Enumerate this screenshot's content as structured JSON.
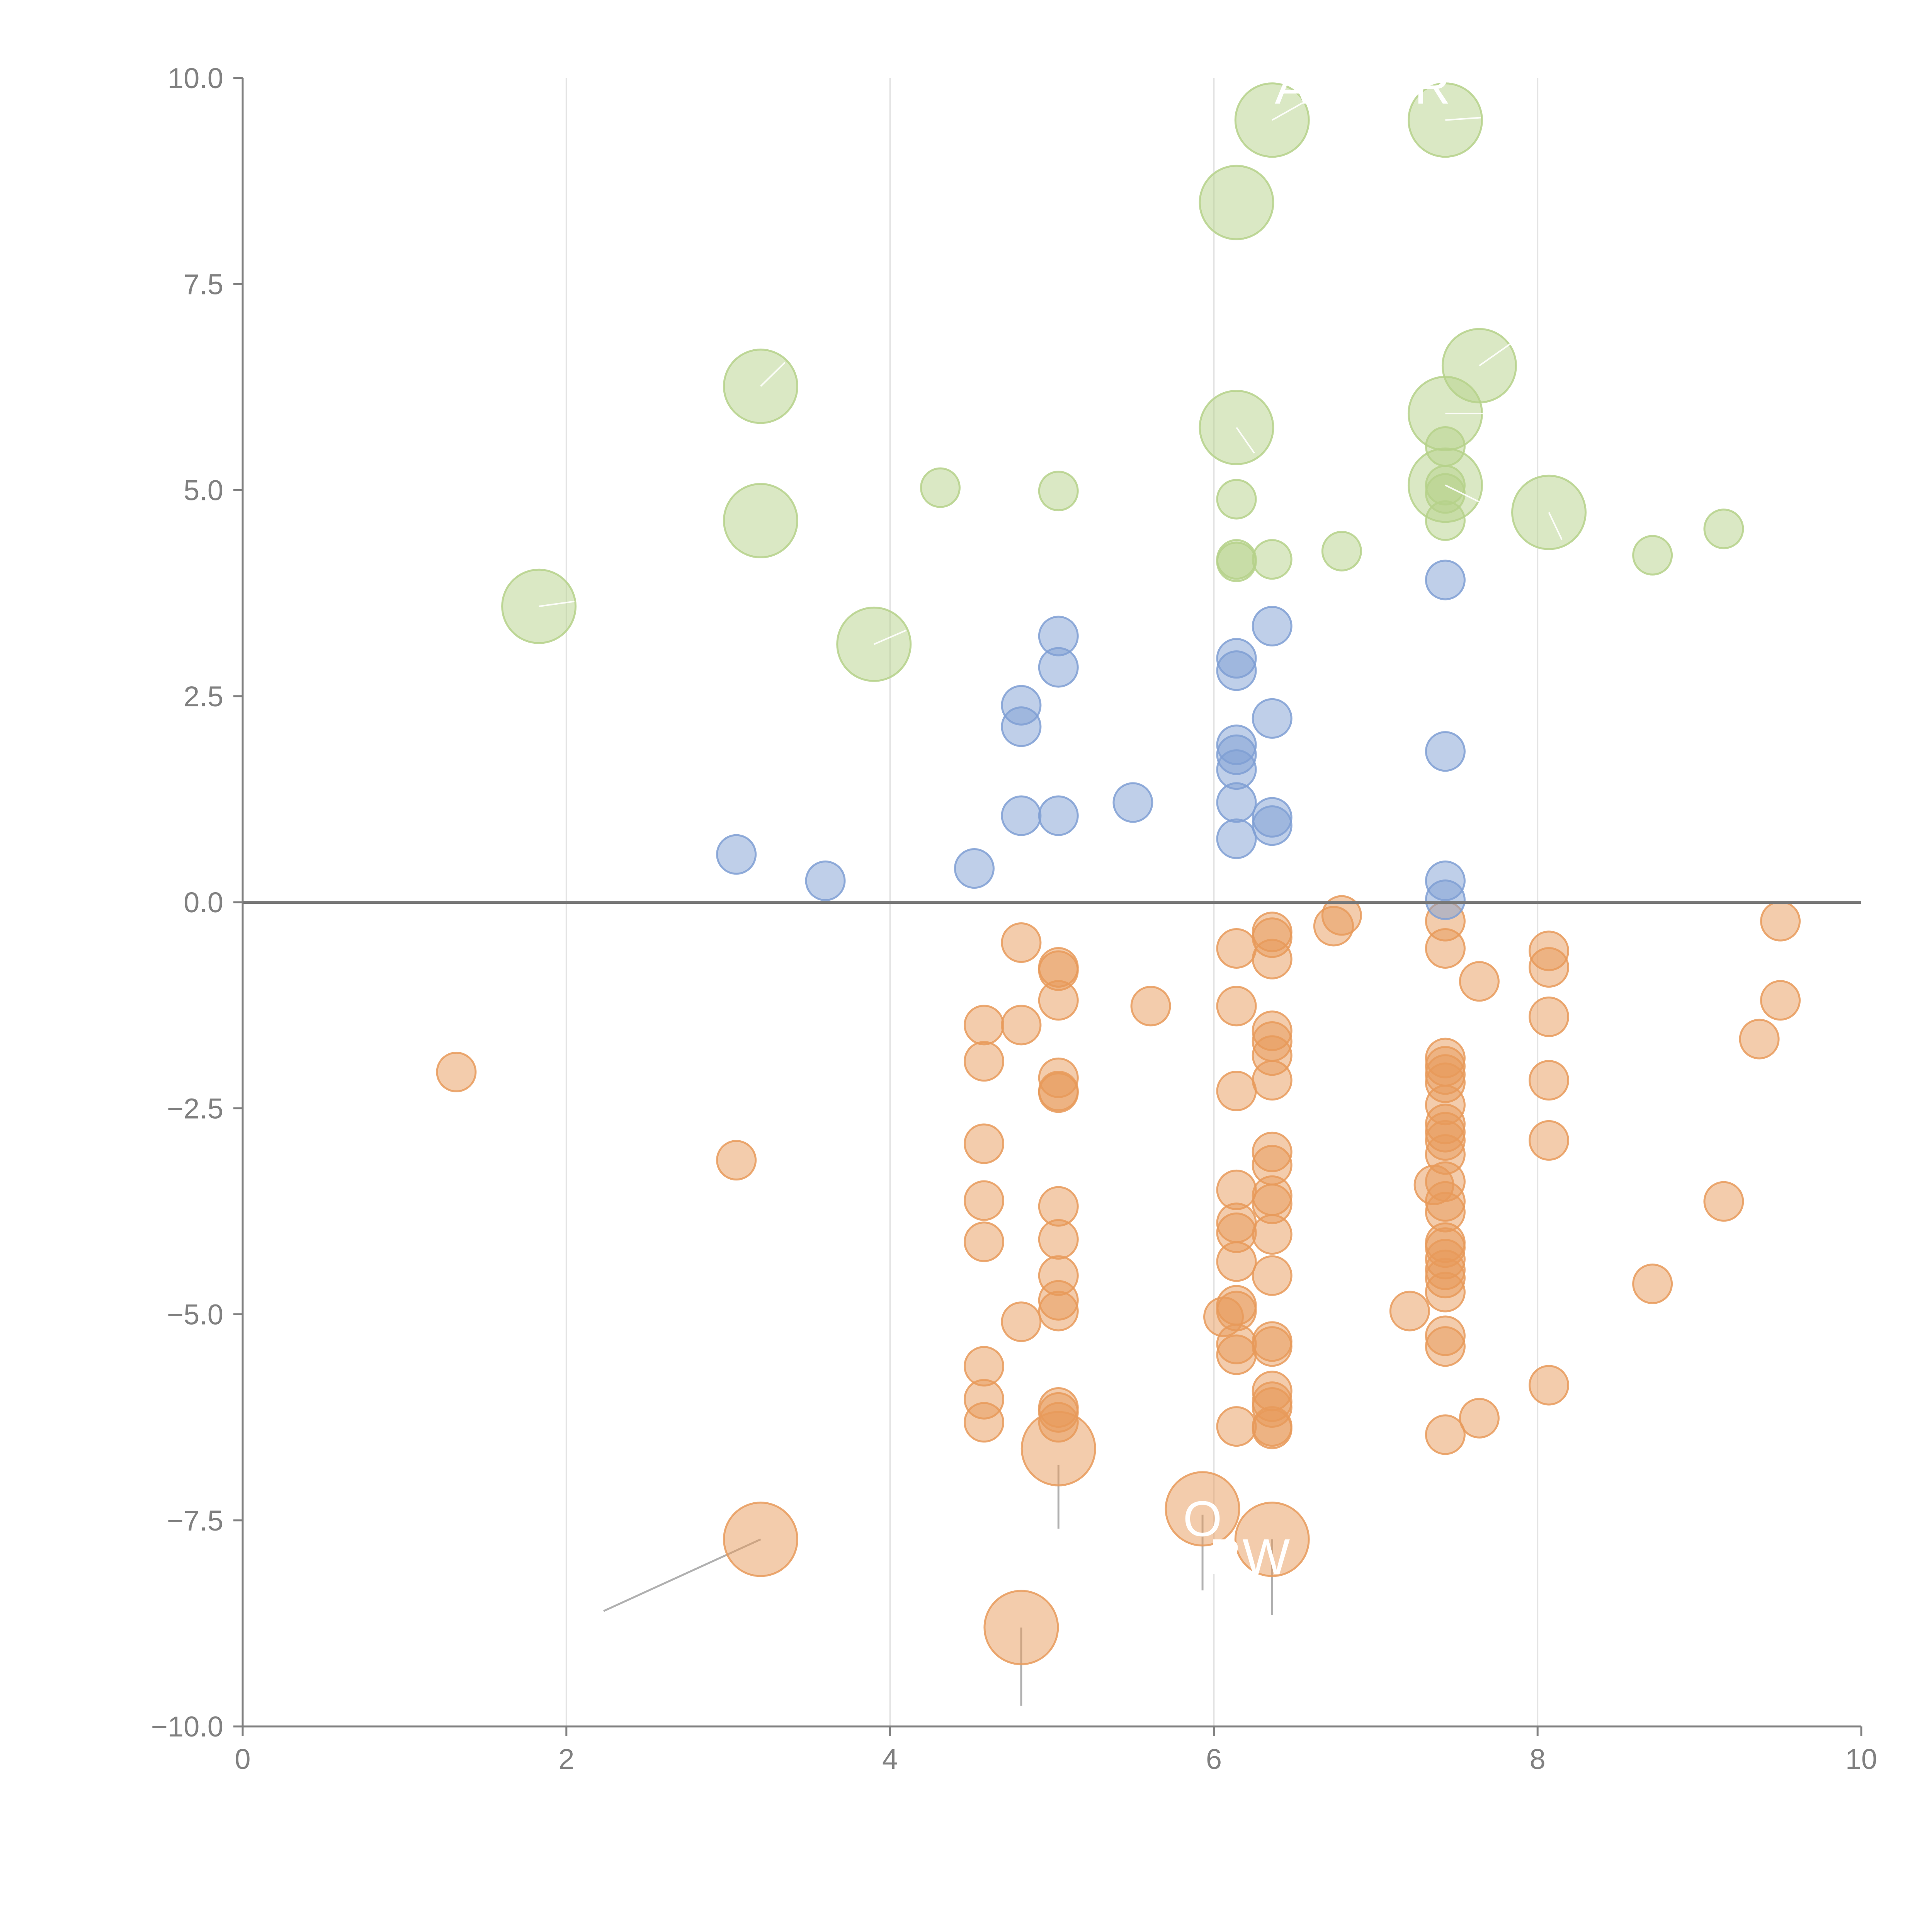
{
  "chart_data": {
    "type": "scatter",
    "title": "",
    "xlabel": "",
    "ylabel": "",
    "xlim": [
      0,
      10
    ],
    "ylim": [
      -10,
      10
    ],
    "x_ticks": [
      0,
      2,
      4,
      6,
      8,
      10
    ],
    "y_ticks": [
      -10,
      -7.5,
      -5,
      -2.5,
      0,
      2.5,
      5,
      7.5,
      10
    ],
    "x_tick_labels": [
      "0",
      "2",
      "4",
      "6",
      "8",
      "10"
    ],
    "y_tick_labels": [
      "−10.0",
      "−7.5",
      "−5.0",
      "−2.5",
      "0.0",
      "2.5",
      "5.0",
      "7.5",
      "10.0"
    ],
    "grid": "vertical lines at x ticks",
    "legend": "none",
    "series": [
      {
        "name": "orange",
        "color": "#e89a5a",
        "points": [
          [
            1.32,
            -2.06
          ],
          [
            3.05,
            -3.13
          ],
          [
            4.58,
            -1.49
          ],
          [
            4.58,
            -1.93
          ],
          [
            4.58,
            -2.93
          ],
          [
            4.58,
            -3.62
          ],
          [
            4.58,
            -4.12
          ],
          [
            4.58,
            -5.63
          ],
          [
            4.58,
            -6.03
          ],
          [
            4.58,
            -6.31
          ],
          [
            4.81,
            -0.49
          ],
          [
            4.81,
            -1.49
          ],
          [
            4.81,
            -5.09
          ],
          [
            5.04,
            -0.79
          ],
          [
            5.04,
            -0.83
          ],
          [
            5.04,
            -1.19
          ],
          [
            5.04,
            -2.13
          ],
          [
            5.04,
            -2.29
          ],
          [
            5.04,
            -2.31
          ],
          [
            5.04,
            -3.69
          ],
          [
            5.04,
            -4.09
          ],
          [
            5.04,
            -4.53
          ],
          [
            5.04,
            -4.83
          ],
          [
            5.04,
            -4.96
          ],
          [
            5.04,
            -6.13
          ],
          [
            5.04,
            -6.19
          ],
          [
            5.04,
            -6.31
          ],
          [
            5.61,
            -1.26
          ],
          [
            6.14,
            -0.56
          ],
          [
            6.14,
            -1.26
          ],
          [
            6.14,
            -2.29
          ],
          [
            6.14,
            -3.49
          ],
          [
            6.14,
            -3.89
          ],
          [
            6.14,
            -4.01
          ],
          [
            6.14,
            -4.36
          ],
          [
            6.14,
            -4.89
          ],
          [
            6.14,
            -4.96
          ],
          [
            6.14,
            -5.36
          ],
          [
            6.14,
            -5.49
          ],
          [
            6.14,
            -6.36
          ],
          [
            6.06,
            -5.03
          ],
          [
            6.36,
            -0.36
          ],
          [
            6.36,
            -0.43
          ],
          [
            6.36,
            -0.69
          ],
          [
            6.36,
            -1.56
          ],
          [
            6.36,
            -1.69
          ],
          [
            6.36,
            -1.86
          ],
          [
            6.36,
            -2.16
          ],
          [
            6.36,
            -3.03
          ],
          [
            6.36,
            -3.19
          ],
          [
            6.36,
            -3.56
          ],
          [
            6.36,
            -3.66
          ],
          [
            6.36,
            -4.03
          ],
          [
            6.36,
            -4.53
          ],
          [
            6.36,
            -5.33
          ],
          [
            6.36,
            -5.39
          ],
          [
            6.36,
            -5.93
          ],
          [
            6.36,
            -6.06
          ],
          [
            6.36,
            -6.13
          ],
          [
            6.36,
            -6.36
          ],
          [
            6.36,
            -6.39
          ],
          [
            6.74,
            -0.29
          ],
          [
            6.79,
            -0.16
          ],
          [
            7.21,
            -4.96
          ],
          [
            7.36,
            -3.43
          ],
          [
            7.43,
            -0.23
          ],
          [
            7.43,
            -0.56
          ],
          [
            7.43,
            -1.89
          ],
          [
            7.43,
            -1.99
          ],
          [
            7.43,
            -2.09
          ],
          [
            7.43,
            -2.19
          ],
          [
            7.43,
            -2.46
          ],
          [
            7.43,
            -2.69
          ],
          [
            7.43,
            -2.79
          ],
          [
            7.43,
            -2.89
          ],
          [
            7.43,
            -3.06
          ],
          [
            7.43,
            -3.39
          ],
          [
            7.43,
            -3.63
          ],
          [
            7.43,
            -3.76
          ],
          [
            7.43,
            -4.13
          ],
          [
            7.43,
            -4.19
          ],
          [
            7.43,
            -4.33
          ],
          [
            7.43,
            -4.46
          ],
          [
            7.43,
            -4.56
          ],
          [
            7.43,
            -4.73
          ],
          [
            7.43,
            -5.26
          ],
          [
            7.43,
            -5.39
          ],
          [
            7.43,
            -6.46
          ],
          [
            7.64,
            -0.96
          ],
          [
            7.64,
            -6.26
          ],
          [
            8.07,
            -0.59
          ],
          [
            8.07,
            -0.79
          ],
          [
            8.07,
            -1.39
          ],
          [
            8.07,
            -2.16
          ],
          [
            8.07,
            -2.89
          ],
          [
            8.07,
            -5.86
          ],
          [
            8.71,
            -4.63
          ],
          [
            9.15,
            -3.63
          ],
          [
            9.37,
            -1.66
          ],
          [
            9.5,
            -0.23
          ],
          [
            9.5,
            -1.19
          ]
        ],
        "large_points": [
          [
            3.2,
            -7.73
          ],
          [
            4.81,
            -8.8
          ],
          [
            5.04,
            -6.63
          ],
          [
            5.93,
            -7.36
          ],
          [
            6.36,
            -7.73
          ]
        ]
      },
      {
        "name": "blue",
        "color": "#7f9fd4",
        "points": [
          [
            3.05,
            0.58
          ],
          [
            3.6,
            0.26
          ],
          [
            4.52,
            0.41
          ],
          [
            4.81,
            1.05
          ],
          [
            4.81,
            2.13
          ],
          [
            4.81,
            2.39
          ],
          [
            5.04,
            1.05
          ],
          [
            5.04,
            2.85
          ],
          [
            5.04,
            3.23
          ],
          [
            5.5,
            1.21
          ],
          [
            6.14,
            0.77
          ],
          [
            6.14,
            1.21
          ],
          [
            6.14,
            1.61
          ],
          [
            6.14,
            1.79
          ],
          [
            6.14,
            1.91
          ],
          [
            6.14,
            2.81
          ],
          [
            6.14,
            2.96
          ],
          [
            6.36,
            0.93
          ],
          [
            6.36,
            1.03
          ],
          [
            6.36,
            2.23
          ],
          [
            6.36,
            3.35
          ],
          [
            7.43,
            0.03
          ],
          [
            7.43,
            0.26
          ],
          [
            7.43,
            1.83
          ],
          [
            7.43,
            3.91
          ]
        ]
      },
      {
        "name": "green",
        "color": "#b5d18a",
        "points": [
          [
            4.31,
            5.03
          ],
          [
            5.04,
            4.99
          ],
          [
            6.14,
            4.89
          ],
          [
            6.14,
            4.13
          ],
          [
            6.14,
            4.16
          ],
          [
            6.36,
            4.16
          ],
          [
            6.79,
            4.26
          ],
          [
            7.43,
            4.63
          ],
          [
            7.43,
            4.96
          ],
          [
            7.43,
            5.06
          ],
          [
            7.43,
            5.53
          ],
          [
            8.71,
            4.21
          ],
          [
            9.15,
            4.53
          ]
        ],
        "large_points": [
          [
            1.83,
            3.59
          ],
          [
            3.2,
            6.26
          ],
          [
            3.2,
            4.63
          ],
          [
            3.9,
            3.13
          ],
          [
            6.14,
            8.49
          ],
          [
            6.14,
            5.76
          ],
          [
            6.36,
            9.49
          ],
          [
            7.43,
            9.49
          ],
          [
            7.43,
            5.93
          ],
          [
            7.43,
            5.06
          ],
          [
            7.64,
            6.51
          ],
          [
            8.07,
            4.73
          ]
        ]
      }
    ],
    "annotations": [
      {
        "text": "A",
        "x": 6.48,
        "y": 9.69
      },
      {
        "text": "R",
        "x": 7.35,
        "y": 9.69
      },
      {
        "text": "O",
        "x": 5.93,
        "y": -7.69
      },
      {
        "text": "BW",
        "x": 6.22,
        "y": -8.15
      }
    ]
  }
}
